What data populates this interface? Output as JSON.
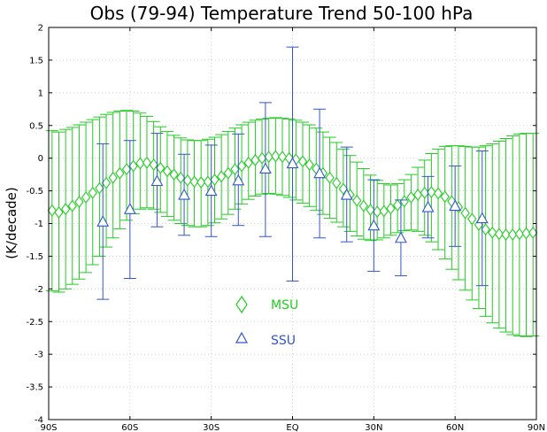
{
  "chart_data": {
    "type": "scatter",
    "title": "Obs (79-94) Temperature Trend  50-100 hPa",
    "xlabel": "",
    "ylabel": "(K/decade)",
    "xlim": [
      -90,
      90
    ],
    "ylim": [
      -4,
      2
    ],
    "x_tick_values": [
      -90,
      -60,
      -30,
      0,
      30,
      60,
      90
    ],
    "x_tick_labels": [
      "90S",
      "60S",
      "30S",
      "EQ",
      "30N",
      "60N",
      "90N"
    ],
    "y_tick_values": [
      -4,
      -3.5,
      -3,
      -2.5,
      -2,
      -1.5,
      -1,
      -0.5,
      0,
      0.5,
      1,
      1.5,
      2
    ],
    "y_tick_labels": [
      "-4",
      "-3.5",
      "-3",
      "-2.5",
      "-2",
      "-1.5",
      "-1",
      "-0.5",
      "0",
      "0.5",
      "1",
      "1.5",
      "2"
    ],
    "grid": true,
    "series": [
      {
        "name": "MSU",
        "marker": "diamond",
        "color": "#22cc22",
        "x": [
          -88.75,
          -86.25,
          -83.75,
          -81.25,
          -78.75,
          -76.25,
          -73.75,
          -71.25,
          -68.75,
          -66.25,
          -63.75,
          -61.25,
          -58.75,
          -56.25,
          -53.75,
          -51.25,
          -48.75,
          -46.25,
          -43.75,
          -41.25,
          -38.75,
          -36.25,
          -33.75,
          -31.25,
          -28.75,
          -26.25,
          -23.75,
          -21.25,
          -18.75,
          -16.25,
          -13.75,
          -11.25,
          -8.75,
          -6.25,
          -3.75,
          -1.25,
          1.25,
          3.75,
          6.25,
          8.75,
          11.25,
          13.75,
          16.25,
          18.75,
          21.25,
          23.75,
          26.25,
          28.75,
          31.25,
          33.75,
          36.25,
          38.75,
          41.25,
          43.75,
          46.25,
          48.75,
          51.25,
          53.75,
          56.25,
          58.75,
          61.25,
          63.75,
          66.25,
          68.75,
          71.25,
          73.75,
          76.25,
          78.75,
          81.25,
          83.75,
          86.25,
          88.75
        ],
        "values": [
          -0.8,
          -0.83,
          -0.78,
          -0.73,
          -0.67,
          -0.6,
          -0.53,
          -0.46,
          -0.38,
          -0.3,
          -0.23,
          -0.17,
          -0.12,
          -0.08,
          -0.07,
          -0.1,
          -0.15,
          -0.2,
          -0.25,
          -0.3,
          -0.34,
          -0.36,
          -0.37,
          -0.36,
          -0.33,
          -0.28,
          -0.23,
          -0.17,
          -0.12,
          -0.07,
          -0.03,
          0.0,
          0.02,
          0.03,
          0.02,
          0.0,
          -0.02,
          -0.05,
          -0.1,
          -0.16,
          -0.23,
          -0.3,
          -0.38,
          -0.47,
          -0.56,
          -0.65,
          -0.73,
          -0.79,
          -0.82,
          -0.81,
          -0.77,
          -0.72,
          -0.66,
          -0.6,
          -0.56,
          -0.53,
          -0.52,
          -0.54,
          -0.59,
          -0.66,
          -0.75,
          -0.84,
          -0.93,
          -1.02,
          -1.09,
          -1.14,
          -1.16,
          -1.17,
          -1.17,
          -1.16,
          -1.15,
          -1.14
        ],
        "error_low": [
          -2.03,
          -2.05,
          -2.0,
          -1.93,
          -1.85,
          -1.75,
          -1.63,
          -1.5,
          -1.36,
          -1.22,
          -1.08,
          -0.95,
          -0.85,
          -0.78,
          -0.76,
          -0.78,
          -0.83,
          -0.89,
          -0.95,
          -1.0,
          -1.03,
          -1.05,
          -1.05,
          -1.03,
          -0.99,
          -0.93,
          -0.86,
          -0.78,
          -0.7,
          -0.63,
          -0.58,
          -0.55,
          -0.54,
          -0.55,
          -0.57,
          -0.6,
          -0.64,
          -0.69,
          -0.74,
          -0.8,
          -0.86,
          -0.92,
          -0.98,
          -1.05,
          -1.12,
          -1.19,
          -1.24,
          -1.26,
          -1.25,
          -1.22,
          -1.18,
          -1.14,
          -1.11,
          -1.1,
          -1.12,
          -1.18,
          -1.28,
          -1.4,
          -1.54,
          -1.7,
          -1.86,
          -2.02,
          -2.17,
          -2.3,
          -2.42,
          -2.52,
          -2.6,
          -2.66,
          -2.7,
          -2.72,
          -2.73,
          -2.72
        ],
        "error_high": [
          0.42,
          0.4,
          0.44,
          0.47,
          0.51,
          0.55,
          0.59,
          0.63,
          0.67,
          0.7,
          0.72,
          0.73,
          0.72,
          0.69,
          0.64,
          0.56,
          0.48,
          0.41,
          0.35,
          0.31,
          0.28,
          0.27,
          0.27,
          0.29,
          0.32,
          0.36,
          0.41,
          0.46,
          0.51,
          0.55,
          0.58,
          0.6,
          0.61,
          0.62,
          0.61,
          0.6,
          0.58,
          0.55,
          0.51,
          0.46,
          0.4,
          0.32,
          0.24,
          0.14,
          0.04,
          -0.06,
          -0.16,
          -0.26,
          -0.34,
          -0.39,
          -0.41,
          -0.39,
          -0.33,
          -0.25,
          -0.14,
          -0.03,
          0.07,
          0.14,
          0.18,
          0.19,
          0.19,
          0.18,
          0.17,
          0.17,
          0.19,
          0.22,
          0.26,
          0.3,
          0.34,
          0.37,
          0.38,
          0.38
        ]
      },
      {
        "name": "SSU",
        "marker": "triangle",
        "color": "#3355cc",
        "x": [
          -70,
          -60,
          -50,
          -40,
          -30,
          -20,
          -10,
          0,
          10,
          20,
          30,
          40,
          50,
          60,
          70
        ],
        "values": [
          -0.97,
          -0.78,
          -0.35,
          -0.56,
          -0.5,
          -0.34,
          -0.16,
          -0.08,
          -0.23,
          -0.56,
          -1.03,
          -1.22,
          -0.75,
          -0.73,
          -0.92
        ],
        "error_low": [
          -2.16,
          -1.84,
          -1.05,
          -1.18,
          -1.2,
          -1.03,
          -1.2,
          -1.88,
          -1.22,
          -1.28,
          -1.73,
          -1.8,
          -1.22,
          -1.35,
          -1.95
        ],
        "error_high": [
          0.22,
          0.27,
          0.38,
          0.06,
          0.2,
          0.37,
          0.85,
          1.7,
          0.75,
          0.17,
          -0.33,
          -0.64,
          -0.28,
          -0.12,
          0.11
        ]
      }
    ]
  }
}
